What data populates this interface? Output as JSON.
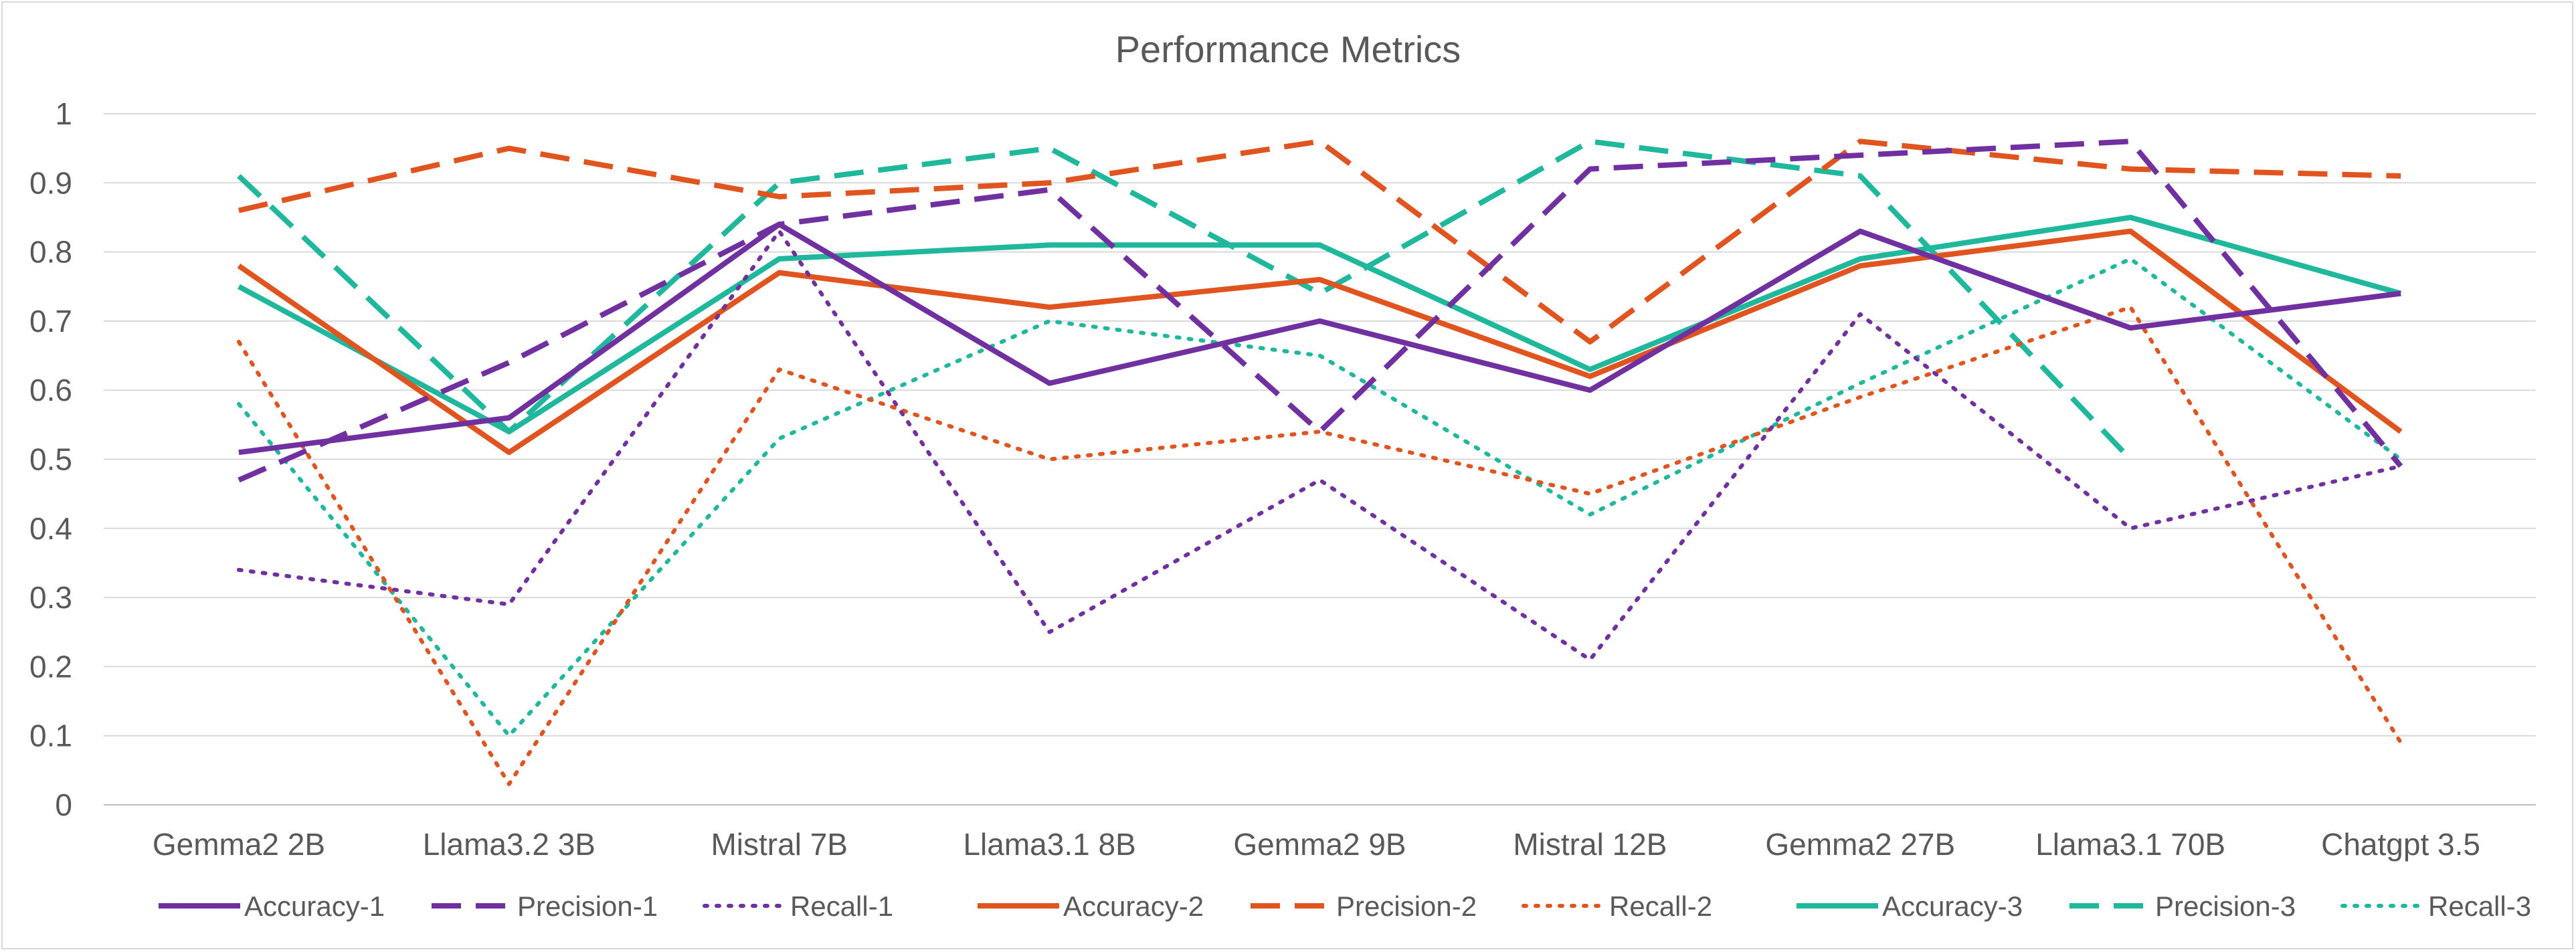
{
  "chart_data": {
    "type": "line",
    "title": "Performance Metrics",
    "xlabel": "",
    "ylabel": "",
    "ylim": [
      0,
      1
    ],
    "yticks": [
      "0",
      "0.1",
      "0.2",
      "0.3",
      "0.4",
      "0.5",
      "0.6",
      "0.7",
      "0.8",
      "0.9",
      "1"
    ],
    "grid": "horizontal",
    "legend_position": "bottom",
    "categories": [
      "Gemma2 2B",
      "Llama3.2 3B",
      "Mistral 7B",
      "Llama3.1 8B",
      "Gemma2 9B",
      "Mistral 12B",
      "Gemma2 27B",
      "Llama3.1 70B",
      "Chatgpt 3.5"
    ],
    "series": [
      {
        "name": "Accuracy-1",
        "color": "#7030a0",
        "style": "solid",
        "values": [
          0.51,
          0.56,
          0.84,
          0.61,
          0.7,
          0.6,
          0.83,
          0.69,
          0.74
        ]
      },
      {
        "name": "Precision-1",
        "color": "#7030a0",
        "style": "dashed",
        "values": [
          0.47,
          0.64,
          0.84,
          0.89,
          0.54,
          0.92,
          0.94,
          0.96,
          0.49
        ]
      },
      {
        "name": "Recall-1",
        "color": "#7030a0",
        "style": "dotted",
        "values": [
          0.34,
          0.29,
          0.83,
          0.25,
          0.47,
          0.21,
          0.71,
          0.4,
          0.49
        ]
      },
      {
        "name": "Accuracy-2",
        "color": "#e0541f",
        "style": "solid",
        "values": [
          0.78,
          0.51,
          0.77,
          0.72,
          0.76,
          0.62,
          0.78,
          0.83,
          0.54
        ]
      },
      {
        "name": "Precision-2",
        "color": "#e0541f",
        "style": "dashed",
        "values": [
          0.86,
          0.95,
          0.88,
          0.9,
          0.96,
          0.67,
          0.96,
          0.92,
          0.91
        ]
      },
      {
        "name": "Recall-2",
        "color": "#e0541f",
        "style": "dotted",
        "values": [
          0.67,
          0.03,
          0.63,
          0.5,
          0.54,
          0.45,
          0.59,
          0.72,
          0.09
        ]
      },
      {
        "name": "Accuracy-3",
        "color": "#1fb89c",
        "style": "solid",
        "values": [
          0.75,
          0.54,
          0.79,
          0.81,
          0.81,
          0.63,
          0.79,
          0.85,
          0.74
        ]
      },
      {
        "name": "Precision-3",
        "color": "#1fb89c",
        "style": "dashed",
        "values": [
          0.91,
          0.54,
          0.9,
          0.95,
          0.74,
          0.96,
          0.91,
          0.5,
          null
        ]
      },
      {
        "name": "Recall-3",
        "color": "#1fb89c",
        "style": "dotted",
        "values": [
          0.58,
          0.1,
          0.53,
          0.7,
          0.65,
          0.42,
          0.61,
          0.79,
          0.5
        ]
      }
    ]
  }
}
